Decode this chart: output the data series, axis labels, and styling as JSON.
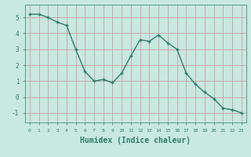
{
  "x": [
    0,
    1,
    2,
    3,
    4,
    5,
    6,
    7,
    8,
    9,
    10,
    11,
    12,
    13,
    14,
    15,
    16,
    17,
    18,
    19,
    20,
    21,
    22,
    23
  ],
  "y": [
    5.2,
    5.2,
    5.0,
    4.7,
    4.5,
    3.0,
    1.6,
    1.0,
    1.1,
    0.9,
    1.5,
    2.6,
    3.6,
    3.5,
    3.9,
    3.4,
    3.0,
    1.5,
    0.8,
    0.3,
    -0.1,
    -0.7,
    -0.8,
    -1.0
  ],
  "line_color": "#2d7d6b",
  "marker": "+",
  "marker_color": "#2d7d6b",
  "bg_color": "#c8e8e0",
  "grid_color": "#c8a0a0",
  "xlabel": "Humidex (Indice chaleur)",
  "xlabel_fontsize": 7,
  "tick_label_color": "#2d7d6b",
  "xlim": [
    -0.5,
    23.5
  ],
  "ylim": [
    -1.6,
    5.8
  ],
  "yticks": [
    -1,
    0,
    1,
    2,
    3,
    4,
    5
  ],
  "xticks": [
    0,
    1,
    2,
    3,
    4,
    5,
    6,
    7,
    8,
    9,
    10,
    11,
    12,
    13,
    14,
    15,
    16,
    17,
    18,
    19,
    20,
    21,
    22,
    23
  ],
  "linewidth": 1.0,
  "markersize": 3.5
}
